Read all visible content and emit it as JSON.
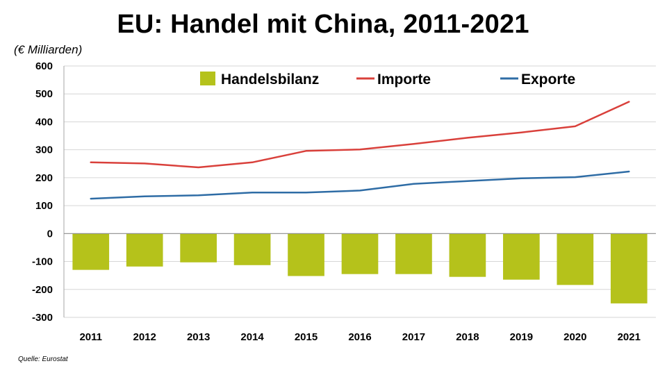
{
  "chart_data": {
    "type": "bar",
    "title": "EU: Handel mit China, 2011-2021",
    "y_unit": "(€ Milliarden)",
    "source": "Quelle: Eurostat",
    "categories": [
      "2011",
      "2012",
      "2013",
      "2014",
      "2015",
      "2016",
      "2017",
      "2018",
      "2019",
      "2020",
      "2021"
    ],
    "ylim": [
      -300,
      600
    ],
    "yticks": [
      600,
      500,
      400,
      300,
      200,
      100,
      0,
      -100,
      -200,
      -300
    ],
    "grid": true,
    "legend_position": "top",
    "series": [
      {
        "name": "Handelsbilanz",
        "kind": "bar",
        "color": "#b5c21b",
        "values": [
          -130,
          -118,
          -103,
          -113,
          -152,
          -145,
          -145,
          -155,
          -165,
          -184,
          -250
        ]
      },
      {
        "name": "Importe",
        "kind": "line",
        "color": "#d9403b",
        "values": [
          255,
          251,
          237,
          255,
          296,
          301,
          321,
          343,
          362,
          384,
          472
        ]
      },
      {
        "name": "Exporte",
        "kind": "line",
        "color": "#2e6ca5",
        "values": [
          125,
          133,
          137,
          147,
          147,
          154,
          178,
          188,
          198,
          202,
          222
        ]
      }
    ]
  }
}
